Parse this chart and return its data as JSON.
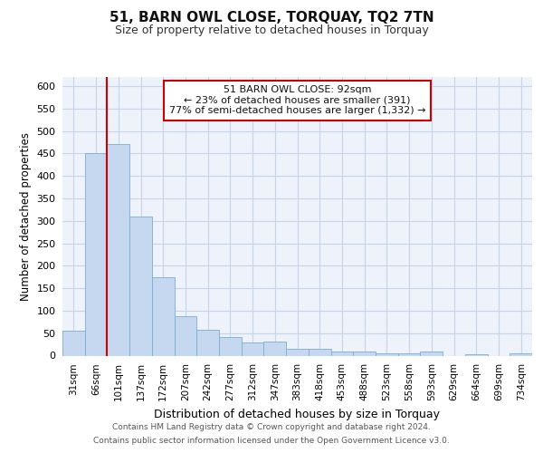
{
  "title": "51, BARN OWL CLOSE, TORQUAY, TQ2 7TN",
  "subtitle": "Size of property relative to detached houses in Torquay",
  "xlabel": "Distribution of detached houses by size in Torquay",
  "ylabel": "Number of detached properties",
  "bar_color": "#c5d8f0",
  "bar_edge_color": "#7aadd4",
  "categories": [
    "31sqm",
    "66sqm",
    "101sqm",
    "137sqm",
    "172sqm",
    "207sqm",
    "242sqm",
    "277sqm",
    "312sqm",
    "347sqm",
    "383sqm",
    "418sqm",
    "453sqm",
    "488sqm",
    "523sqm",
    "558sqm",
    "593sqm",
    "629sqm",
    "664sqm",
    "699sqm",
    "734sqm"
  ],
  "values": [
    55,
    450,
    470,
    310,
    175,
    88,
    58,
    42,
    30,
    32,
    15,
    15,
    10,
    10,
    6,
    6,
    9,
    0,
    4,
    0,
    5
  ],
  "ylim": [
    0,
    620
  ],
  "yticks": [
    0,
    50,
    100,
    150,
    200,
    250,
    300,
    350,
    400,
    450,
    500,
    550,
    600
  ],
  "annotation_text": "51 BARN OWL CLOSE: 92sqm\n← 23% of detached houses are smaller (391)\n77% of semi-detached houses are larger (1,332) →",
  "footer1": "Contains HM Land Registry data © Crown copyright and database right 2024.",
  "footer2": "Contains public sector information licensed under the Open Government Licence v3.0.",
  "bg_color": "#edf2fb",
  "grid_color": "#c8d4e8",
  "annotation_box_color": "#cc0000",
  "fig_bg": "#ffffff",
  "red_line_x": 1.5
}
